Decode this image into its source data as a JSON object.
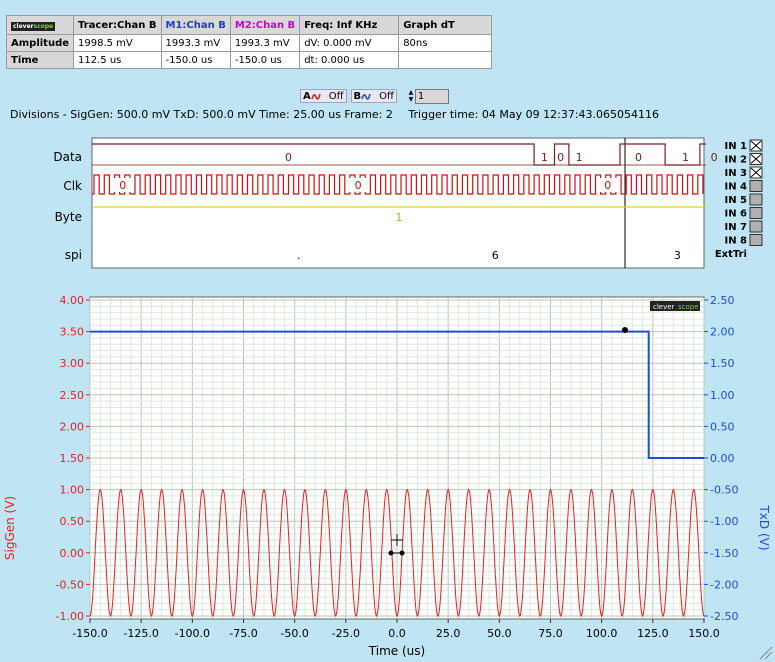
{
  "measurements": {
    "logo_a": "clever",
    "logo_b": "scope",
    "headers": [
      {
        "text": "Tracer:Chan B",
        "color": "#000000"
      },
      {
        "text": "M1:Chan B",
        "color": "#1a3fd0"
      },
      {
        "text": "M2:Chan B",
        "color": "#d000d0"
      },
      {
        "text": "Freq: Inf KHz",
        "color": "#000000"
      },
      {
        "text": "Graph dT",
        "color": "#000000"
      }
    ],
    "rows": [
      {
        "label": "Amplitude",
        "cells": [
          "1998.5 mV",
          "1993.3 mV",
          "1993.3 mV",
          "dV: 0.000 mV",
          "80ns"
        ]
      },
      {
        "label": "Time",
        "cells": [
          "112.5 us",
          "-150.0 us",
          "-150.0 us",
          "dt:  0.000 us",
          ""
        ]
      }
    ]
  },
  "toggles": {
    "a_label": "A",
    "a_state": "Off",
    "b_label": "B",
    "b_state": "Off",
    "spin_value": "1"
  },
  "info": {
    "divisions": "Divisions -  SigGen: 500.0 mV   TxD: 500.0 mV   Time: 25.00 us  Frame: 2",
    "trigger": "Trigger time: 04 May 09 12:37:43.065054116"
  },
  "digital": {
    "channel_labels": [
      "Data",
      "Clk",
      "Byte",
      "spi"
    ],
    "data_values": [
      {
        "t": -54,
        "v": "0"
      },
      {
        "t": 71,
        "v": "1"
      },
      {
        "t": 79,
        "v": "0"
      },
      {
        "t": 88,
        "v": "1"
      },
      {
        "t": 117,
        "v": "0"
      },
      {
        "t": 140,
        "v": "1"
      },
      {
        "t": 154,
        "v": "0"
      }
    ],
    "clk_values": [
      {
        "t": -135,
        "v": "0"
      },
      {
        "t": -20,
        "v": "0"
      },
      {
        "t": 102,
        "v": "0"
      }
    ],
    "byte_value": "1",
    "spi_values": [
      {
        "t": -49,
        "v": "."
      },
      {
        "t": 47,
        "v": "6"
      },
      {
        "t": 136,
        "v": "3"
      }
    ],
    "inputs": [
      "IN 1",
      "IN 2",
      "IN 3",
      "IN 4",
      "IN 5",
      "IN 6",
      "IN 7",
      "IN 8",
      "ExtTri"
    ]
  },
  "colors": {
    "siggen": "#e82020",
    "txd": "#1f4fcf",
    "digital": "#c03030",
    "byte": "#e8d020",
    "grid_major": "#b8c8b8",
    "grid_minor": "#dfe8df"
  },
  "chart_data": {
    "type": "line",
    "title": "",
    "xlabel": "Time (us)",
    "ylabel_left": "SigGen (V)",
    "ylabel_right": "TxD (V)",
    "xlim": [
      -150,
      150
    ],
    "ylim_left": [
      -1.0,
      4.0
    ],
    "ylim_right": [
      -2.5,
      2.5
    ],
    "x_ticks": [
      "-150.0",
      "-125.0",
      "-100.0",
      "-75.0",
      "-50.0",
      "-25.0",
      "0.0",
      "25.0",
      "50.0",
      "75.0",
      "100.0",
      "125.0",
      "150.0"
    ],
    "y_ticks_left": [
      "4.00",
      "3.50",
      "3.00",
      "2.50",
      "2.00",
      "1.50",
      "1.00",
      "0.50",
      "0.00",
      "-0.50",
      "-1.00"
    ],
    "y_ticks_right": [
      "2.50",
      "2.00",
      "1.50",
      "1.00",
      "0.50",
      "0.00",
      "-0.50",
      "-1.00",
      "-1.50",
      "-2.00",
      "-2.50"
    ],
    "grid": true,
    "series": [
      {
        "name": "SigGen",
        "axis": "left",
        "shape": "sine",
        "center": 0.0,
        "amplitude": 1.0,
        "period_us": 10.0
      },
      {
        "name": "TxD",
        "axis": "right",
        "shape": "step",
        "points": [
          [
            -150,
            2.0
          ],
          [
            123,
            2.0
          ],
          [
            123,
            0.0
          ],
          [
            150,
            0.0
          ]
        ]
      }
    ]
  }
}
